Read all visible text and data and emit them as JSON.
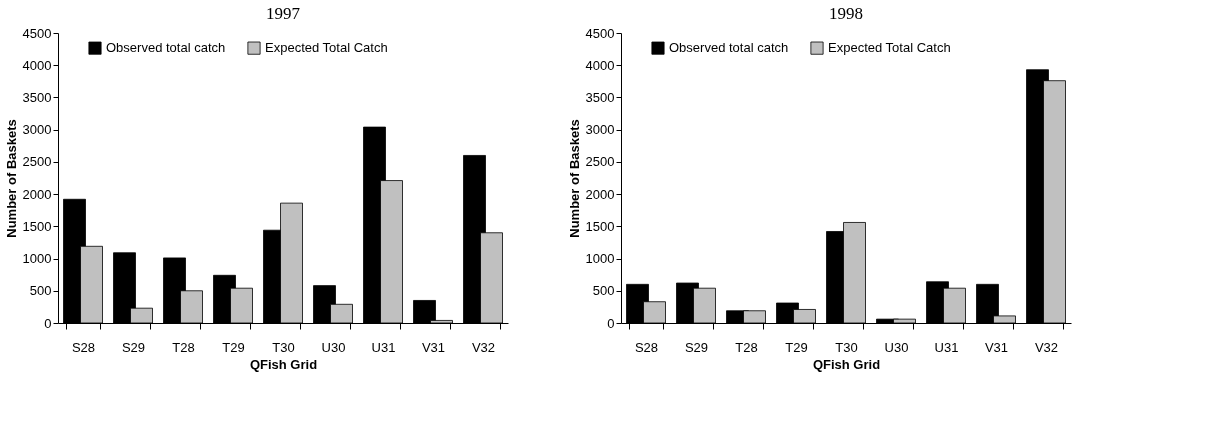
{
  "chart_data": [
    {
      "type": "bar",
      "title": "1997",
      "xlabel": "QFish Grid",
      "ylabel": "Number of Baskets",
      "categories": [
        "S28",
        "S29",
        "T28",
        "T29",
        "T30",
        "U30",
        "U31",
        "V31",
        "V32"
      ],
      "series": [
        {
          "name": "Observed total catch",
          "color": "#000000",
          "values": [
            1920,
            1090,
            1010,
            740,
            1440,
            580,
            3040,
            350,
            2600
          ]
        },
        {
          "name": "Expected Total Catch",
          "color": "#c0c0c0",
          "values": [
            1190,
            230,
            500,
            540,
            1860,
            290,
            2210,
            40,
            1400
          ]
        }
      ],
      "ylim": [
        0,
        4500
      ],
      "yticks": [
        0,
        500,
        1000,
        1500,
        2000,
        2500,
        3000,
        3500,
        4000,
        4500
      ],
      "grid": false,
      "legend": "top"
    },
    {
      "type": "bar",
      "title": "1998",
      "xlabel": "QFish Grid",
      "ylabel": "Number of Baskets",
      "categories": [
        "S28",
        "S29",
        "T28",
        "T29",
        "T30",
        "U30",
        "U31",
        "V31",
        "V32"
      ],
      "series": [
        {
          "name": "Observed total catch",
          "color": "#000000",
          "values": [
            600,
            620,
            190,
            310,
            1420,
            60,
            640,
            600,
            3930
          ]
        },
        {
          "name": "Expected Total Catch",
          "color": "#c0c0c0",
          "values": [
            330,
            540,
            190,
            210,
            1560,
            60,
            540,
            110,
            3760
          ]
        }
      ],
      "ylim": [
        0,
        4500
      ],
      "yticks": [
        0,
        500,
        1000,
        1500,
        2000,
        2500,
        3000,
        3500,
        4000,
        4500
      ],
      "grid": false,
      "legend": "top"
    }
  ]
}
